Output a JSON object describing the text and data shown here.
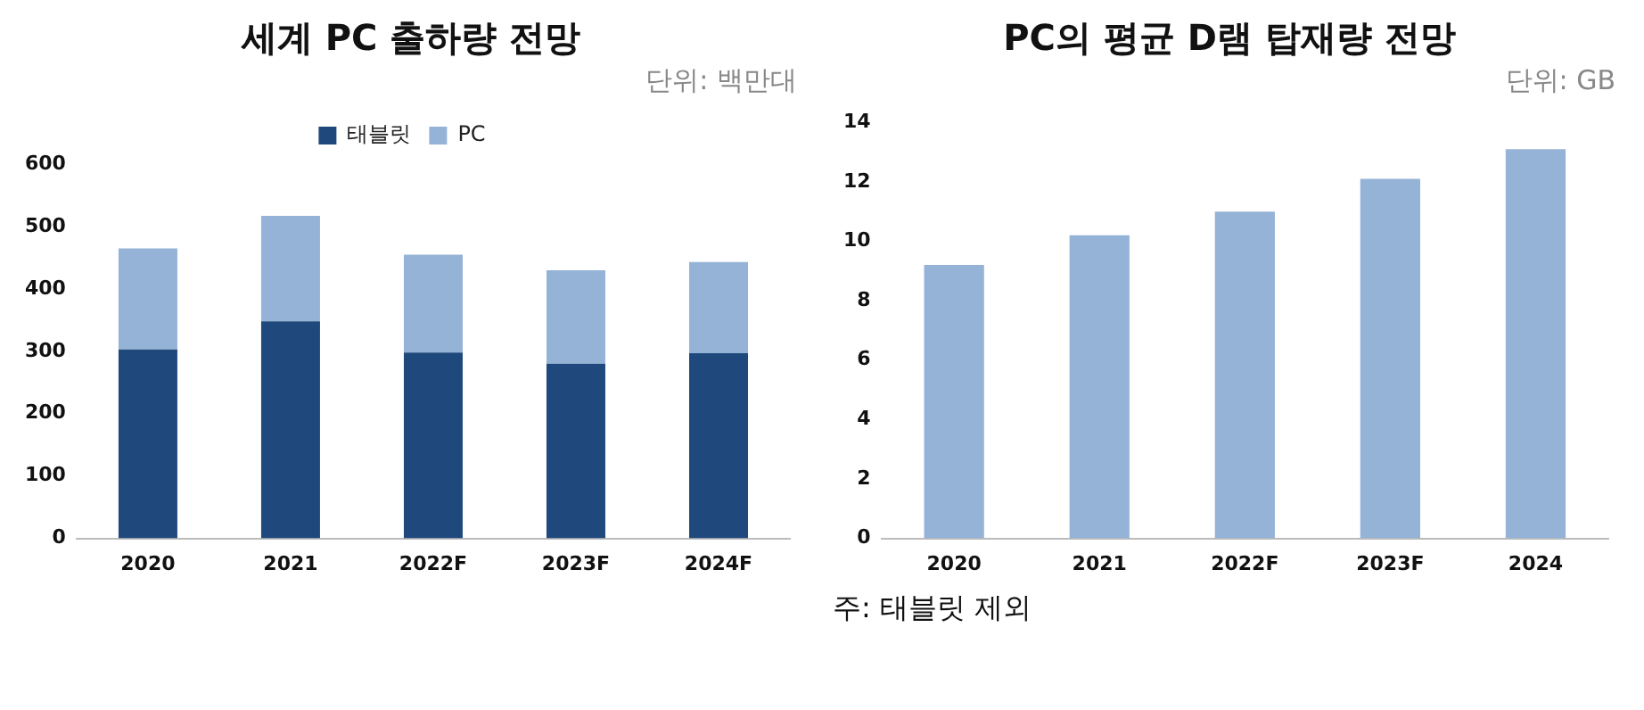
{
  "chart_data": [
    {
      "type": "bar",
      "title": "세계 PC 출하량 전망",
      "annotations": [
        "단위: 백만대"
      ],
      "categories": [
        "2020",
        "2021",
        "2022F",
        "2023F",
        "2024F"
      ],
      "stacked": true,
      "series": [
        {
          "name": "태블릿",
          "color": "#1f497d",
          "values": [
            303,
            348,
            298,
            280,
            297
          ]
        },
        {
          "name": "PC",
          "color": "#95b3d7",
          "values": [
            162,
            169,
            157,
            150,
            146
          ]
        }
      ],
      "ylim": [
        0,
        600
      ],
      "yticks": [
        0,
        100,
        200,
        300,
        400,
        500,
        600
      ],
      "grid": false,
      "legend": "top"
    },
    {
      "type": "bar",
      "title": "PC의 평균 D램 탑재량 전망",
      "annotations": [
        "단위: GB",
        "주: 태블릿 제외"
      ],
      "categories": [
        "2020",
        "2021",
        "2022F",
        "2023F",
        "2024"
      ],
      "series": [
        {
          "color": "#95b3d7",
          "values": [
            9.2,
            10.2,
            11.0,
            12.1,
            13.1
          ]
        }
      ],
      "ylim": [
        0,
        14
      ],
      "yticks": [
        0,
        2,
        4,
        6,
        8,
        10,
        12,
        14
      ],
      "grid": false,
      "legend": false
    }
  ]
}
